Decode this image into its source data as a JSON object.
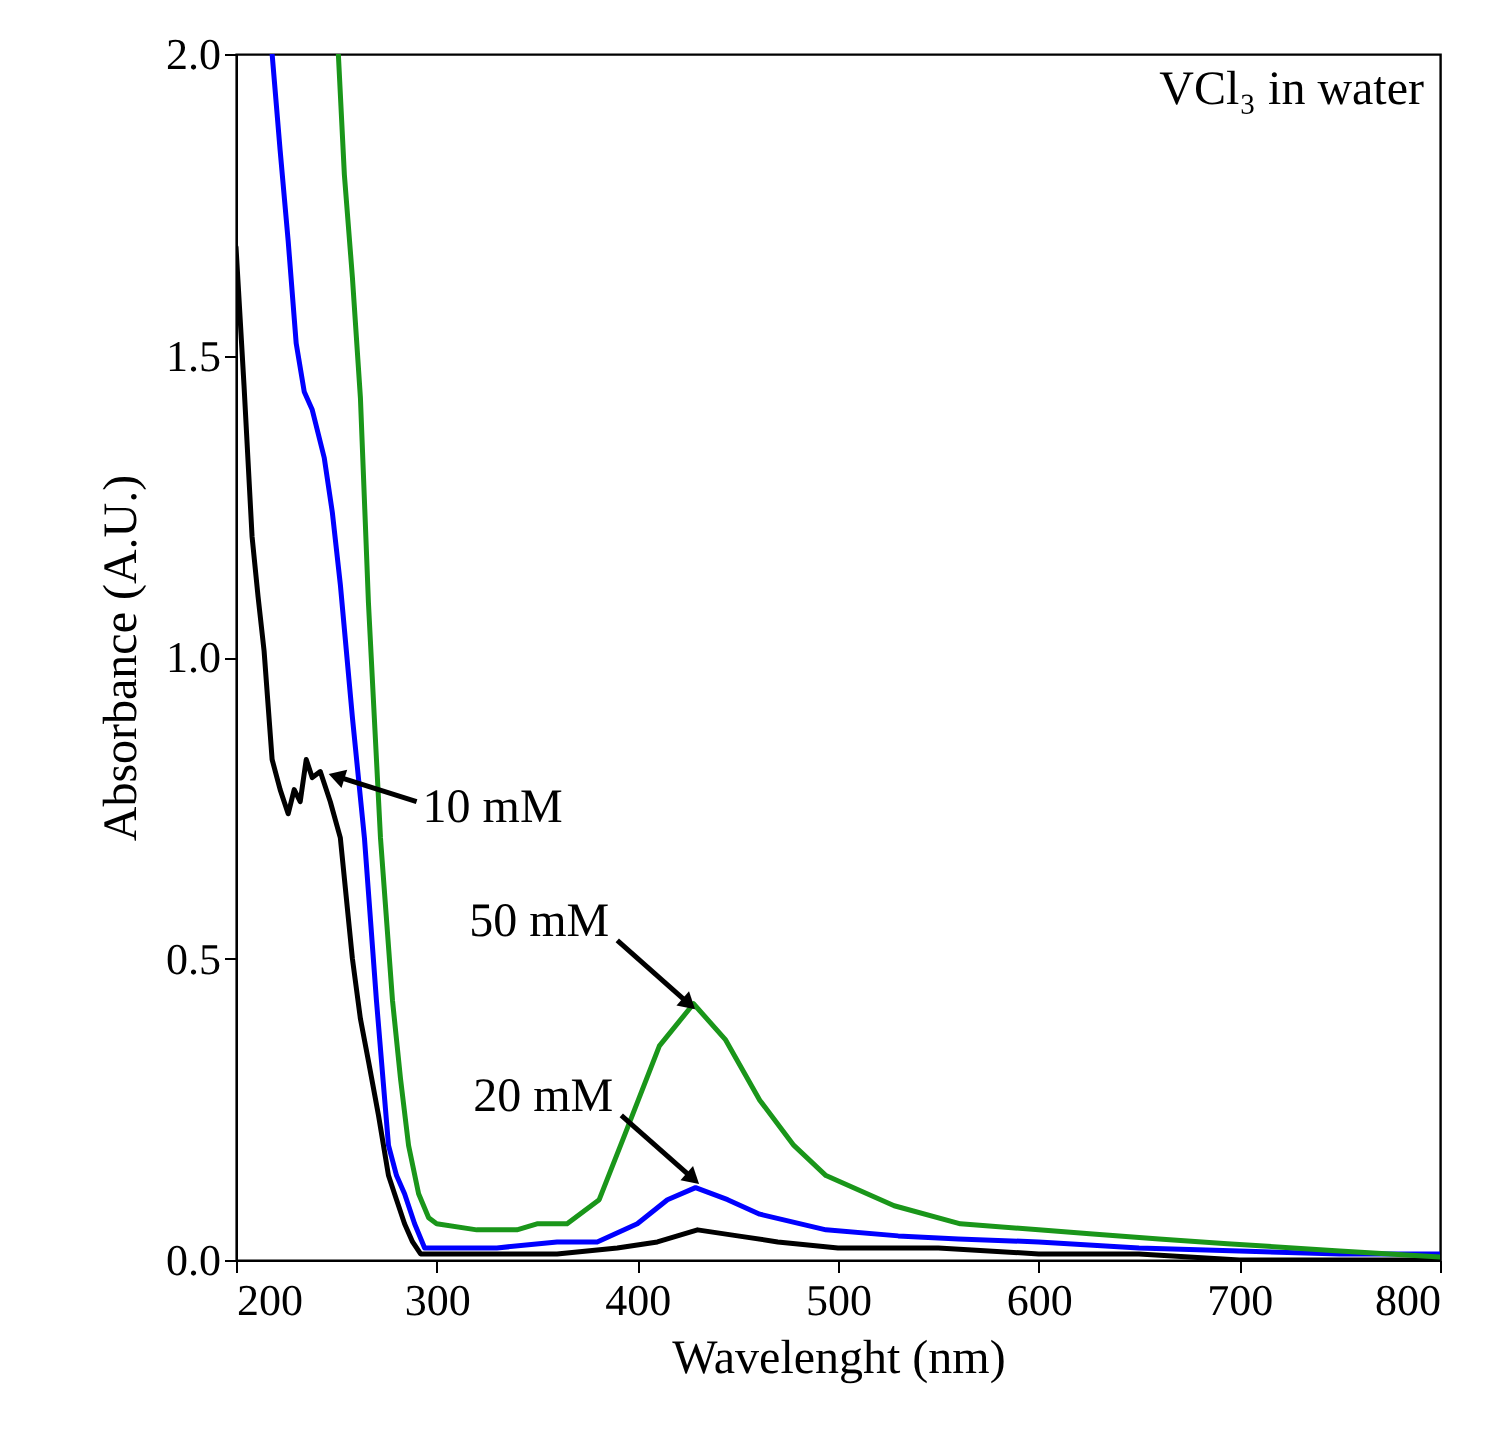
{
  "chart_data": {
    "type": "line",
    "xlabel": "Wavelenght (nm)",
    "ylabel": "Absorbance (A.U.)",
    "annotations": [
      "VCl₃ in water",
      {
        "text": "10 mM",
        "x": 252,
        "y": 0.8
      },
      {
        "text": "50 mM",
        "x": 424,
        "y": 0.43
      },
      {
        "text": "20 mM",
        "x": 426,
        "y": 0.14
      }
    ],
    "xlim": [
      200,
      800
    ],
    "xticks": [
      200,
      300,
      400,
      500,
      600,
      700,
      800
    ],
    "ylim": [
      0,
      2
    ],
    "yticks": [
      {
        "value": 0,
        "label": "0.0"
      },
      0.5,
      {
        "value": 1,
        "label": "1.0"
      },
      1.5,
      {
        "value": 2,
        "label": "2.0"
      }
    ],
    "grid": false,
    "legend": false,
    "line_style": "solid",
    "marker": "none",
    "series": [
      {
        "color": "#000000",
        "x": [
          200,
          204,
          208,
          211,
          214,
          218,
          222,
          226,
          229,
          232,
          235,
          238,
          242,
          247,
          252,
          258,
          262,
          266,
          271,
          276,
          280,
          284,
          288,
          292,
          300,
          330,
          360,
          390,
          410,
          430,
          450,
          470,
          500,
          550,
          600,
          650,
          700,
          750,
          800
        ],
        "values": [
          1.68,
          1.45,
          1.2,
          1.1,
          1.01,
          0.83,
          0.78,
          0.74,
          0.78,
          0.76,
          0.83,
          0.8,
          0.81,
          0.76,
          0.7,
          0.5,
          0.4,
          0.33,
          0.24,
          0.14,
          0.1,
          0.06,
          0.03,
          0.01,
          0.01,
          0.01,
          0.01,
          0.02,
          0.03,
          0.05,
          0.04,
          0.03,
          0.02,
          0.02,
          0.01,
          0.01,
          0,
          0,
          0
        ]
      },
      {
        "color": "#0000ff",
        "x": [
          218,
          222,
          226,
          230,
          234,
          238,
          244,
          248,
          252,
          258,
          264,
          270,
          276,
          280,
          284,
          289,
          294,
          300,
          330,
          360,
          380,
          400,
          415,
          429,
          445,
          461,
          494,
          530,
          560,
          600,
          650,
          700,
          750,
          800
        ],
        "values": [
          2,
          1.84,
          1.69,
          1.52,
          1.44,
          1.41,
          1.33,
          1.24,
          1.12,
          0.9,
          0.7,
          0.43,
          0.19,
          0.14,
          0.11,
          0.06,
          0.02,
          0.02,
          0.02,
          0.03,
          0.03,
          0.06,
          0.1,
          0.12,
          0.1,
          0.076,
          0.05,
          0.04,
          0.035,
          0.03,
          0.02,
          0.015,
          0.01,
          0.01
        ]
      },
      {
        "color": "#1a961a",
        "x": [
          251,
          254,
          258,
          262,
          266,
          272,
          278,
          282,
          286,
          291,
          296,
          300,
          320,
          340,
          350,
          365,
          381,
          394,
          411,
          428,
          444,
          461,
          478,
          494,
          528,
          561,
          600,
          627,
          660,
          694,
          750,
          800
        ],
        "values": [
          2,
          1.8,
          1.63,
          1.43,
          1.09,
          0.7,
          0.43,
          0.3,
          0.19,
          0.11,
          0.07,
          0.06,
          0.05,
          0.05,
          0.06,
          0.06,
          0.1,
          0.21,
          0.355,
          0.425,
          0.365,
          0.265,
          0.19,
          0.14,
          0.09,
          0.06,
          0.05,
          0.043,
          0.035,
          0.027,
          0.015,
          0.005
        ]
      }
    ]
  }
}
